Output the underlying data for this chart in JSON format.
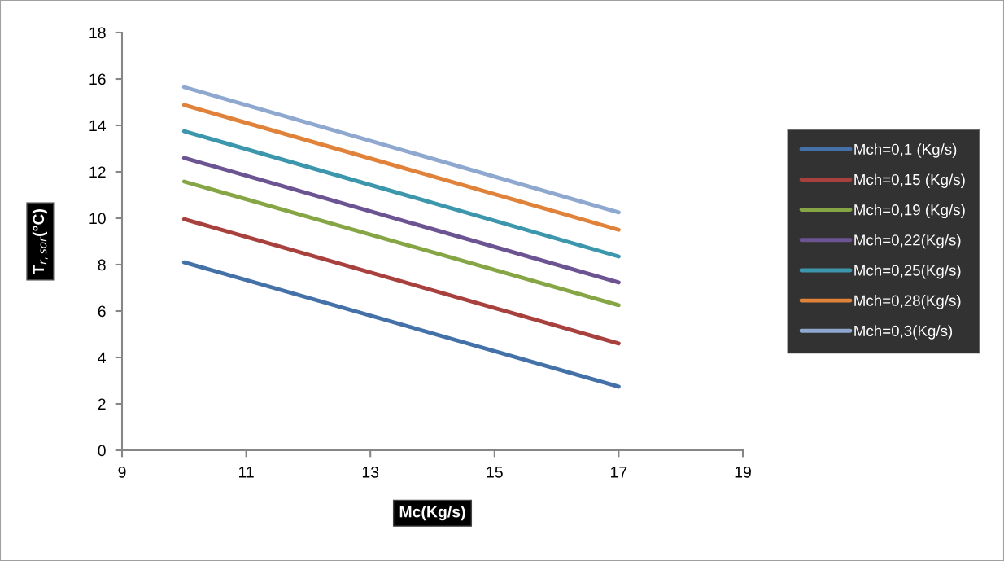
{
  "chart_data": {
    "type": "line",
    "xlabel": "Mc(Kg/s)",
    "ylabel": "T$_{r,sor}$(°C)",
    "x": [
      10,
      17
    ],
    "series": [
      {
        "name": "Mch=0,1 (Kg/s)",
        "color": "#4472a8",
        "values": [
          8.1,
          2.74
        ]
      },
      {
        "name": "Mch=0,15 (Kg/s)",
        "color": "#a8413d",
        "values": [
          9.96,
          4.6
        ]
      },
      {
        "name": "Mch=0,19 (Kg/s)",
        "color": "#86a646",
        "values": [
          11.58,
          6.25
        ]
      },
      {
        "name": "Mch=0,22(Kg/s)",
        "color": "#6c5392",
        "values": [
          12.6,
          7.23
        ]
      },
      {
        "name": "Mch=0,25(Kg/s)",
        "color": "#3c96ac",
        "values": [
          13.75,
          8.35
        ]
      },
      {
        "name": "Mch=0,28(Kg/s)",
        "color": "#e0823a",
        "values": [
          14.88,
          9.5
        ]
      },
      {
        "name": "Mch=0,3(Kg/s)",
        "color": "#8fa8cf",
        "values": [
          15.65,
          10.25
        ]
      }
    ],
    "xlim": [
      9,
      19
    ],
    "xticks": [
      9,
      11,
      13,
      15,
      17,
      19
    ],
    "ylim": [
      0,
      18
    ],
    "yticks": [
      0,
      2,
      4,
      6,
      8,
      10,
      12,
      14,
      16,
      18
    ],
    "grid": false,
    "legend": "right",
    "marker": "none",
    "line_style": "solid"
  }
}
